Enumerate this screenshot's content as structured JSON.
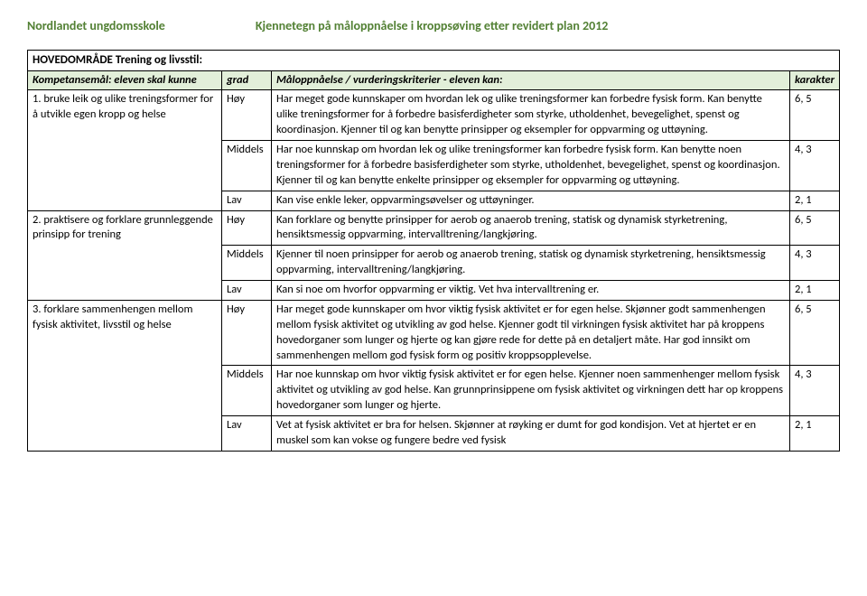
{
  "header": {
    "school": "Nordlandet ungdomsskole",
    "title": "Kjennetegn på måloppnåelse i  kroppsøving etter revidert plan  2012"
  },
  "section_title": "HOVEDOMRÅDE Trening og livsstil:",
  "columns": {
    "c1": "Kompetansemål: eleven skal kunne",
    "c2": "grad",
    "c3": "Måloppnåelse / vurderingskriterier  - eleven kan:",
    "c4": "karakter"
  },
  "rows": [
    {
      "goal": "1.  bruke leik og ulike treningsformer for å utvikle egen kropp og helse",
      "levels": [
        {
          "grad": "Høy",
          "text": "Har meget gode kunnskaper om hvordan lek og ulike treningsformer kan forbedre fysisk form. Kan benytte ulike treningsformer for å forbedre basisferdigheter som styrke, utholdenhet, bevegelighet, spenst og koordinasjon. Kjenner til og kan benytte prinsipper og eksempler for oppvarming og uttøyning.",
          "kar": "6, 5"
        },
        {
          "grad": "Middels",
          "text": "Har noe kunnskap om hvordan lek og ulike treningsformer kan forbedre fysisk form. Kan benytte noen treningsformer for å forbedre basisferdigheter som styrke, utholdenhet, bevegelighet, spenst og koordinasjon. Kjenner til og kan benytte enkelte prinsipper og eksempler for oppvarming og uttøyning.",
          "kar": "4, 3"
        },
        {
          "grad": "Lav",
          "text": "Kan vise enkle leker, oppvarmingsøvelser og uttøyninger.",
          "kar": "2, 1"
        }
      ]
    },
    {
      "goal": "2.  praktisere og forklare grunnleggende prinsipp for trening",
      "levels": [
        {
          "grad": "Høy",
          "text": "Kan forklare og benytte prinsipper for aerob og anaerob trening, statisk og dynamisk styrketrening, hensiktsmessig oppvarming, intervalltrening/langkjøring.",
          "kar": "6, 5"
        },
        {
          "grad": "Middels",
          "text": "Kjenner til noen prinsipper for aerob og anaerob trening, statisk og dynamisk styrketrening, hensiktsmessig oppvarming, intervalltrening/langkjøring.",
          "kar": "4, 3"
        },
        {
          "grad": "Lav",
          "text": "Kan si noe om hvorfor oppvarming er viktig. Vet hva intervalltrening er.",
          "kar": "2, 1"
        }
      ]
    },
    {
      "goal": "3.  forklare sammenhengen mellom fysisk aktivitet, livsstil og helse",
      "levels": [
        {
          "grad": "Høy",
          "text": "Har meget gode kunnskaper om hvor viktig fysisk aktivitet er for egen helse. Skjønner godt sammenhengen mellom fysisk aktivitet og utvikling av god helse. Kjenner godt til virkningen fysisk aktivitet har på kroppens hovedorganer som lunger og hjerte og kan gjøre rede for dette på en detaljert måte. Har god innsikt om sammenhengen mellom god fysisk form og positiv kroppsopplevelse.",
          "kar": "6, 5"
        },
        {
          "grad": "Middels",
          "text": "Har noe kunnskap om hvor viktig fysisk aktivitet er for egen helse. Kjenner noen sammenhenger mellom fysisk aktivitet og utvikling av god helse. Kan grunnprinsippene om fysisk aktivitet og virkningen dett har op kroppens hovedorganer som lunger og hjerte.",
          "kar": "4, 3"
        },
        {
          "grad": "Lav",
          "text": "Vet at fysisk aktivitet er bra for helsen. Skjønner at røyking er dumt for god kondisjon. Vet at hjertet er en muskel som kan vokse og fungere bedre ved fysisk",
          "kar": "2, 1"
        }
      ]
    }
  ]
}
